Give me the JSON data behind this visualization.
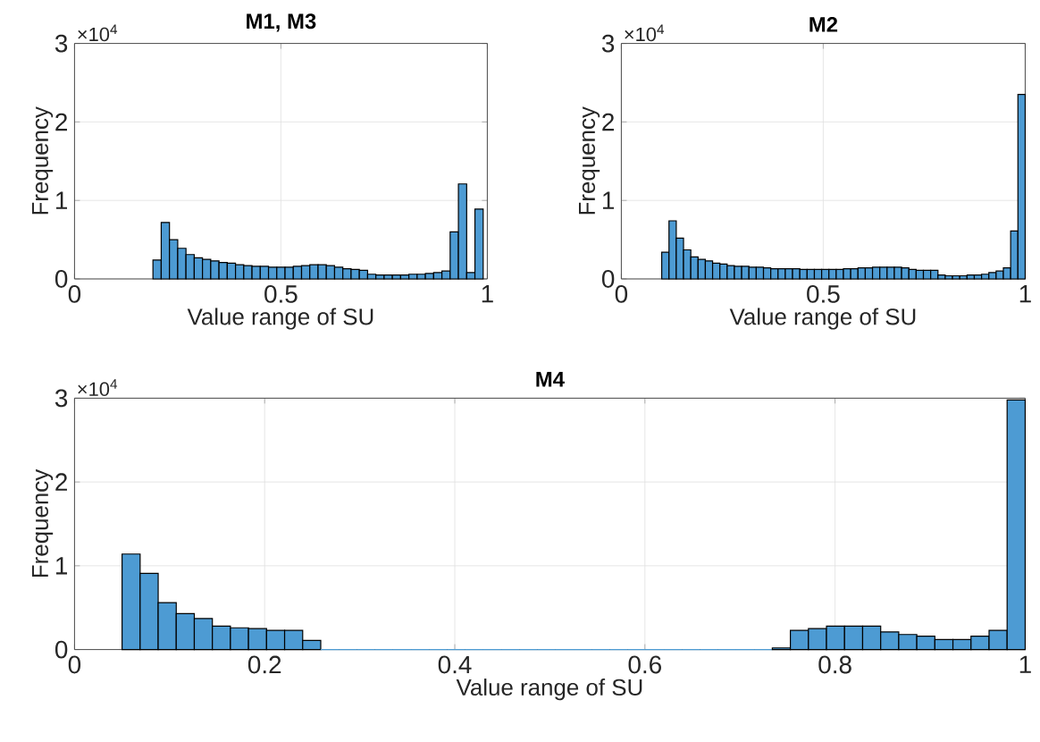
{
  "chart_data": [
    {
      "type": "histogram",
      "title": "M1, M3",
      "xlabel": "Value range of SU",
      "ylabel": "Frequency",
      "color": "#4d9bd3",
      "grid": true,
      "bins": [
        0.19,
        0.21,
        0.23,
        0.25,
        0.27,
        0.29,
        0.31,
        0.33,
        0.35,
        0.37,
        0.39,
        0.41,
        0.43,
        0.45,
        0.47,
        0.49,
        0.51,
        0.53,
        0.55,
        0.57,
        0.59,
        0.61,
        0.63,
        0.65,
        0.67,
        0.69,
        0.71,
        0.73,
        0.75,
        0.77,
        0.79,
        0.81,
        0.83,
        0.85,
        0.87,
        0.89,
        0.91,
        0.93,
        0.95,
        0.97,
        0.99
      ],
      "values": [
        0.24,
        0.72,
        0.5,
        0.39,
        0.31,
        0.27,
        0.25,
        0.23,
        0.21,
        0.2,
        0.18,
        0.17,
        0.16,
        0.16,
        0.15,
        0.15,
        0.15,
        0.16,
        0.17,
        0.18,
        0.18,
        0.17,
        0.15,
        0.13,
        0.12,
        0.11,
        0.06,
        0.05,
        0.05,
        0.05,
        0.05,
        0.06,
        0.06,
        0.07,
        0.08,
        0.1,
        0.6,
        1.21,
        0.08,
        0.89
      ],
      "xlim": [
        0,
        1
      ],
      "xticks": [
        0,
        0.5,
        1
      ],
      "ylim": [
        0,
        3
      ],
      "yticks": [
        0,
        1,
        2,
        3
      ],
      "annotations": [
        "×10$^{4}$"
      ]
    },
    {
      "type": "histogram",
      "title": "M2",
      "xlabel": "Value range of SU",
      "ylabel": "Frequency",
      "color": "#4d9bd3",
      "grid": true,
      "bins": [
        0.1,
        0.118,
        0.136,
        0.154,
        0.172,
        0.19,
        0.208,
        0.226,
        0.244,
        0.262,
        0.28,
        0.298,
        0.316,
        0.334,
        0.352,
        0.37,
        0.388,
        0.406,
        0.424,
        0.442,
        0.46,
        0.478,
        0.496,
        0.514,
        0.532,
        0.55,
        0.568,
        0.586,
        0.604,
        0.622,
        0.64,
        0.658,
        0.676,
        0.694,
        0.712,
        0.73,
        0.748,
        0.766,
        0.784,
        0.802,
        0.82,
        0.838,
        0.856,
        0.874,
        0.892,
        0.91,
        0.928,
        0.946,
        0.964,
        0.982,
        1.0
      ],
      "values": [
        0.34,
        0.74,
        0.52,
        0.37,
        0.28,
        0.25,
        0.23,
        0.2,
        0.19,
        0.17,
        0.16,
        0.16,
        0.15,
        0.15,
        0.14,
        0.13,
        0.13,
        0.13,
        0.13,
        0.12,
        0.12,
        0.12,
        0.12,
        0.12,
        0.12,
        0.13,
        0.13,
        0.14,
        0.14,
        0.15,
        0.15,
        0.15,
        0.15,
        0.14,
        0.12,
        0.11,
        0.11,
        0.11,
        0.05,
        0.04,
        0.04,
        0.04,
        0.05,
        0.05,
        0.06,
        0.08,
        0.1,
        0.14,
        0.61,
        2.35
      ],
      "xlim": [
        0,
        1
      ],
      "xticks": [
        0,
        0.5,
        1
      ],
      "ylim": [
        0,
        3
      ],
      "yticks": [
        0,
        1,
        2,
        3
      ],
      "annotations": [
        "×10$^{4}$"
      ]
    },
    {
      "type": "histogram",
      "title": "M4",
      "xlabel": "Value range of SU",
      "ylabel": "Frequency",
      "color": "#4d9bd3",
      "grid": true,
      "bins": [
        0.05,
        0.069,
        0.088,
        0.107,
        0.126,
        0.145,
        0.164,
        0.183,
        0.202,
        0.221,
        0.24,
        0.259,
        0.278,
        0.297,
        0.316,
        0.335,
        0.354,
        0.373,
        0.392,
        0.411,
        0.43,
        0.449,
        0.468,
        0.487,
        0.506,
        0.525,
        0.544,
        0.563,
        0.582,
        0.601,
        0.62,
        0.639,
        0.658,
        0.677,
        0.696,
        0.715,
        0.734,
        0.753,
        0.772,
        0.791,
        0.81,
        0.829,
        0.848,
        0.867,
        0.886,
        0.905,
        0.924,
        0.943,
        0.962,
        0.981,
        1.0
      ],
      "values": [
        1.14,
        0.91,
        0.56,
        0.43,
        0.37,
        0.28,
        0.26,
        0.25,
        0.23,
        0.23,
        0.11,
        0,
        0,
        0,
        0,
        0,
        0,
        0,
        0,
        0,
        0,
        0,
        0,
        0,
        0,
        0,
        0,
        0,
        0,
        0,
        0,
        0,
        0,
        0,
        0,
        0,
        0.02,
        0.23,
        0.25,
        0.28,
        0.28,
        0.28,
        0.21,
        0.18,
        0.16,
        0.12,
        0.12,
        0.16,
        0.23,
        2.98
      ],
      "xlim": [
        0,
        1
      ],
      "xticks": [
        0,
        0.2,
        0.4,
        0.6,
        0.8,
        1
      ],
      "ylim": [
        0,
        3
      ],
      "yticks": [
        0,
        1,
        2,
        3
      ],
      "annotations": [
        "×10$^{4}$"
      ]
    }
  ]
}
